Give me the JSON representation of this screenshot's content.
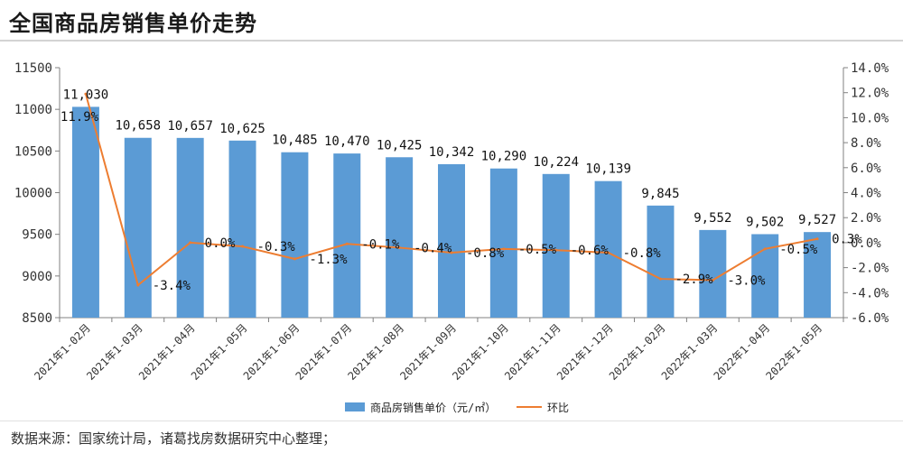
{
  "page": {
    "title": "全国商品房销售单价走势",
    "source": "数据来源：国家统计局，诸葛找房数据研究中心整理；"
  },
  "chart_data": {
    "type": "bar",
    "categories": [
      "2021年1-02月",
      "2021年1-03月",
      "2021年1-04月",
      "2021年1-05月",
      "2021年1-06月",
      "2021年1-07月",
      "2021年1-08月",
      "2021年1-09月",
      "2021年1-10月",
      "2021年1-11月",
      "2021年1-12月",
      "2022年1-02月",
      "2022年1-03月",
      "2022年1-04月",
      "2022年1-05月"
    ],
    "series": [
      {
        "name": "商品房销售单价（元/㎡）",
        "type": "bar",
        "axis": "left",
        "color": "#5b9bd5",
        "values": [
          11030,
          10658,
          10657,
          10625,
          10485,
          10470,
          10425,
          10342,
          10290,
          10224,
          10139,
          9845,
          9552,
          9502,
          9527
        ],
        "labels": [
          "11,030",
          "10,658",
          "10,657",
          "10,625",
          "10,485",
          "10,470",
          "10,425",
          "10,342",
          "10,290",
          "10,224",
          "10,139",
          "9,845",
          "9,552",
          "9,502",
          "9,527"
        ]
      },
      {
        "name": "环比",
        "type": "line",
        "axis": "right",
        "color": "#ed7d31",
        "values": [
          11.9,
          -3.4,
          0.0,
          -0.3,
          -1.3,
          -0.1,
          -0.4,
          -0.8,
          -0.5,
          -0.6,
          -0.8,
          -2.9,
          -3.0,
          -0.5,
          0.3
        ],
        "labels": [
          "11.9%",
          "-3.4%",
          "0.0%",
          "-0.3%",
          "-1.3%",
          "-0.1%",
          "-0.4%",
          "-0.8%",
          "-0.5%",
          "-0.6%",
          "-0.8%",
          "-2.9%",
          "-3.0%",
          "-0.5%",
          "0.3%"
        ]
      }
    ],
    "y_left": {
      "lim": [
        8500,
        11500
      ],
      "ticks": [
        8500,
        9000,
        9500,
        10000,
        10500,
        11000,
        11500
      ],
      "tick_labels": [
        "8500",
        "9000",
        "9500",
        "10000",
        "10500",
        "11000",
        "11500"
      ]
    },
    "y_right": {
      "lim": [
        -6,
        14
      ],
      "ticks": [
        -6,
        -4,
        -2,
        0,
        2,
        4,
        6,
        8,
        10,
        12,
        14
      ],
      "tick_labels": [
        "-6.0%",
        "-4.0%",
        "-2.0%",
        "0.0%",
        "2.0%",
        "4.0%",
        "6.0%",
        "8.0%",
        "10.0%",
        "12.0%",
        "14.0%"
      ]
    },
    "grid": false,
    "legend_position": "bottom"
  }
}
